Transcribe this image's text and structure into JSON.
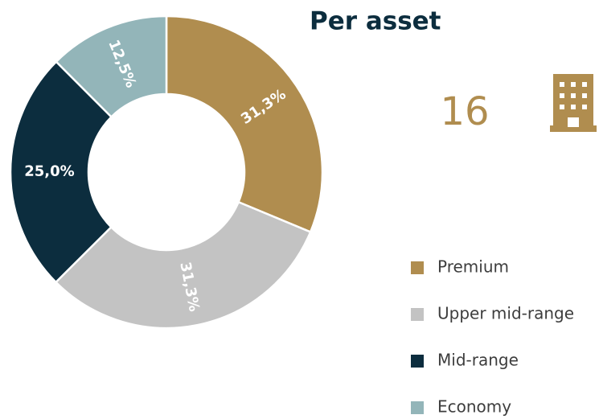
{
  "chart_data": {
    "type": "donut",
    "title": "Per asset",
    "annotation": "16",
    "categories": [
      "Premium",
      "Upper mid-range",
      "Mid-range",
      "Economy"
    ],
    "values": [
      31.3,
      31.3,
      25.0,
      12.5
    ],
    "value_labels": [
      "31,3%",
      "31,3%",
      "25,0%",
      "12,5%"
    ],
    "colors": [
      "#b08d4f",
      "#c3c3c3",
      "#0c2d3e",
      "#93b5b9"
    ]
  }
}
